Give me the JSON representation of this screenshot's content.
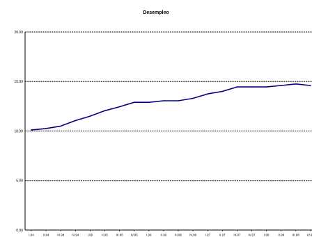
{
  "chart_data": {
    "type": "line",
    "title": "Desempleo",
    "xlabel": "",
    "ylabel": "",
    "ylim": [
      0,
      20
    ],
    "yticks": [
      "0.00",
      "5.00",
      "10.00",
      "15.00",
      "20.00"
    ],
    "grid": true,
    "x": [
      "I.94",
      "II.94",
      "III.94",
      "IV.94",
      "I.95",
      "II.95",
      "III.95",
      "IV.95",
      "I.96",
      "II.96",
      "III.96",
      "IV.96",
      "I.97",
      "II.97",
      "III.97",
      "IV.97",
      "I.98",
      "II.98",
      "III.98",
      "IV.98"
    ],
    "xtick_labels": [
      "I.94",
      "II.94",
      "III.94",
      "IV.94",
      "I.95",
      "II.95",
      "III.95",
      "IV.95",
      "I.96",
      "II.96",
      "III.96",
      "IV.96",
      "I.97",
      "II.97",
      "III.97",
      "IV.97",
      "I.98",
      "II.98",
      "III.98",
      "IV.98"
    ],
    "series": [
      {
        "name": "",
        "color": "#000080",
        "values": [
          10.1,
          10.25,
          10.5,
          11.05,
          11.5,
          12.05,
          12.45,
          12.9,
          12.9,
          13.05,
          13.05,
          13.3,
          13.75,
          14.0,
          14.45,
          14.45,
          14.45,
          14.6,
          14.75,
          14.6
        ]
      }
    ]
  }
}
